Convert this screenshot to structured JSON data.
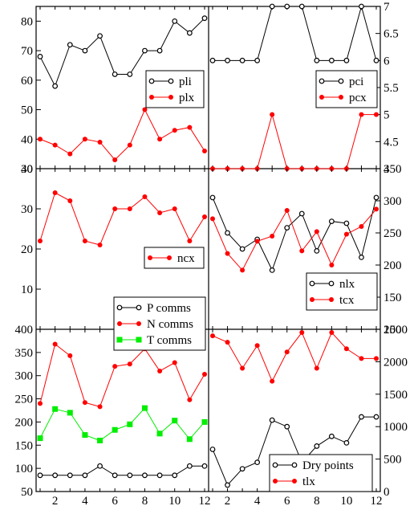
{
  "chart_data": [
    {
      "type": "line",
      "panel": "top-left",
      "x": [
        1,
        2,
        3,
        4,
        5,
        6,
        7,
        8,
        9,
        10,
        11,
        12
      ],
      "ylim": [
        30,
        85
      ],
      "yticks": [
        30,
        40,
        50,
        60,
        70,
        80
      ],
      "ytick_side": "left",
      "legend_position": "right",
      "series": [
        {
          "name": "pli",
          "color": "#000000",
          "marker": "open-circle",
          "values": [
            68,
            58,
            72,
            70,
            75,
            62,
            62,
            70,
            70,
            80,
            76,
            81
          ]
        },
        {
          "name": "plx",
          "color": "#ff0000",
          "marker": "filled-circle",
          "values": [
            40,
            38,
            35,
            40,
            39,
            33,
            38,
            50,
            40,
            43,
            44,
            36
          ]
        }
      ]
    },
    {
      "type": "line",
      "panel": "top-right",
      "x": [
        1,
        2,
        3,
        4,
        5,
        6,
        7,
        8,
        9,
        10,
        11,
        12
      ],
      "ylim": [
        4,
        7
      ],
      "yticks": [
        4,
        4.5,
        5,
        5.5,
        6,
        6.5,
        7
      ],
      "ytick_side": "right",
      "legend_position": "bottom-right",
      "series": [
        {
          "name": "pci",
          "color": "#000000",
          "marker": "open-circle",
          "values": [
            6,
            6,
            6,
            6,
            7,
            7,
            7,
            6,
            6,
            6,
            7,
            6
          ]
        },
        {
          "name": "pcx",
          "color": "#ff0000",
          "marker": "filled-circle",
          "values": [
            4,
            4,
            4,
            4,
            5,
            4,
            4,
            4,
            4,
            4,
            5,
            5
          ]
        }
      ]
    },
    {
      "type": "line",
      "panel": "middle-left",
      "x": [
        1,
        2,
        3,
        4,
        5,
        6,
        7,
        8,
        9,
        10,
        11,
        12
      ],
      "ylim": [
        0,
        40
      ],
      "yticks": [
        10,
        20,
        30,
        40
      ],
      "ytick_side": "left",
      "legend_position": "right",
      "series": [
        {
          "name": "ncx",
          "color": "#ff0000",
          "marker": "filled-circle",
          "values": [
            22,
            34,
            32,
            22,
            21,
            30,
            30,
            33,
            29,
            30,
            22,
            28
          ]
        }
      ]
    },
    {
      "type": "line",
      "panel": "middle-right",
      "x": [
        1,
        2,
        3,
        4,
        5,
        6,
        7,
        8,
        9,
        10,
        11,
        12
      ],
      "ylim": [
        100,
        350
      ],
      "yticks": [
        100,
        150,
        200,
        250,
        300,
        350
      ],
      "ytick_side": "right",
      "legend_position": "bottom-right",
      "series": [
        {
          "name": "nlx",
          "color": "#000000",
          "marker": "open-circle",
          "values": [
            305,
            250,
            225,
            240,
            192,
            258,
            280,
            222,
            268,
            265,
            212,
            305
          ]
        },
        {
          "name": "tcx",
          "color": "#ff0000",
          "marker": "filled-circle",
          "values": [
            272,
            218,
            192,
            237,
            245,
            285,
            222,
            252,
            200,
            248,
            260,
            287
          ]
        }
      ]
    },
    {
      "type": "line",
      "panel": "bottom-left",
      "x": [
        1,
        2,
        3,
        4,
        5,
        6,
        7,
        8,
        9,
        10,
        11,
        12
      ],
      "ylim": [
        50,
        400
      ],
      "yticks": [
        50,
        100,
        150,
        200,
        250,
        300,
        350,
        400
      ],
      "ytick_side": "left",
      "legend_position": "top-left",
      "series": [
        {
          "name": "P comms",
          "color": "#000000",
          "marker": "open-circle",
          "values": [
            85,
            85,
            85,
            85,
            105,
            85,
            85,
            85,
            85,
            85,
            105,
            105
          ]
        },
        {
          "name": "N comms",
          "color": "#ff0000",
          "marker": "filled-circle",
          "values": [
            240,
            368,
            343,
            242,
            233,
            320,
            325,
            358,
            310,
            328,
            248,
            303
          ]
        },
        {
          "name": "T comms",
          "color": "#00ee00",
          "marker": "filled-square",
          "values": [
            165,
            228,
            220,
            172,
            160,
            183,
            195,
            230,
            175,
            203,
            163,
            200
          ]
        }
      ]
    },
    {
      "type": "line",
      "panel": "bottom-right",
      "x": [
        1,
        2,
        3,
        4,
        5,
        6,
        7,
        8,
        9,
        10,
        11,
        12
      ],
      "ylim": [
        0,
        2500
      ],
      "yticks": [
        0,
        500,
        1000,
        1500,
        2000,
        2500
      ],
      "ytick_side": "right",
      "legend_position": "bottom-right",
      "series": [
        {
          "name": "Dry points",
          "color": "#000000",
          "marker": "open-circle",
          "values": [
            650,
            100,
            350,
            450,
            1100,
            1000,
            450,
            700,
            850,
            750,
            1150,
            1150
          ]
        },
        {
          "name": "tlx",
          "color": "#ff0000",
          "marker": "filled-circle",
          "values": [
            2400,
            2300,
            1900,
            2250,
            1700,
            2150,
            2450,
            1900,
            2450,
            2200,
            2050,
            2050
          ]
        }
      ]
    }
  ],
  "xticks": {
    "left": [
      2,
      4,
      6,
      8,
      10,
      12
    ],
    "right": [
      2,
      4,
      6,
      8,
      10,
      12
    ]
  }
}
